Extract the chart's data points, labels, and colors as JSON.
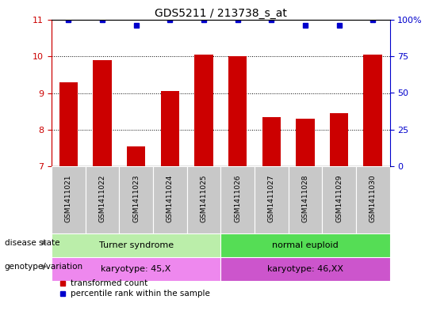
{
  "title": "GDS5211 / 213738_s_at",
  "samples": [
    "GSM1411021",
    "GSM1411022",
    "GSM1411023",
    "GSM1411024",
    "GSM1411025",
    "GSM1411026",
    "GSM1411027",
    "GSM1411028",
    "GSM1411029",
    "GSM1411030"
  ],
  "transformed_counts": [
    9.3,
    9.9,
    7.55,
    9.05,
    10.05,
    10.0,
    8.35,
    8.3,
    8.45,
    10.05
  ],
  "percentile_ranks": [
    100,
    100,
    96,
    100,
    100,
    100,
    100,
    96,
    96,
    100
  ],
  "ylim_left": [
    7,
    11
  ],
  "ylim_right": [
    0,
    100
  ],
  "yticks_left": [
    7,
    8,
    9,
    10,
    11
  ],
  "yticks_right": [
    0,
    25,
    50,
    75,
    100
  ],
  "bar_color": "#cc0000",
  "dot_color": "#0000cc",
  "disease_state_labels": [
    "Turner syndrome",
    "normal euploid"
  ],
  "disease_state_colors": [
    "#bbeeaa",
    "#55dd55"
  ],
  "genotype_labels": [
    "karyotype: 45,X",
    "karyotype: 46,XX"
  ],
  "genotype_colors": [
    "#ee88ee",
    "#cc55cc"
  ],
  "legend_items": [
    "transformed count",
    "percentile rank within the sample"
  ],
  "legend_colors": [
    "#cc0000",
    "#0000cc"
  ],
  "background_color": "#ffffff",
  "left_axis_color": "#cc0000",
  "right_axis_color": "#0000cc",
  "sample_box_color": "#c8c8c8",
  "grid_dotted_color": "#333333",
  "title_fontsize": 10,
  "tick_fontsize": 8,
  "label_fontsize": 8,
  "sample_fontsize": 6.5
}
